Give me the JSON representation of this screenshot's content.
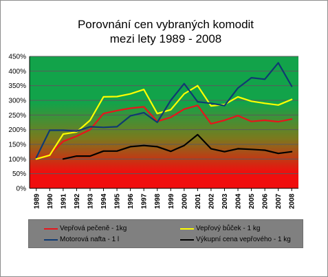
{
  "title": [
    "Porovnání cen vybraných komodit",
    "mezi lety 1989 - 2008"
  ],
  "colors": {
    "gradient_top": "#12a34a",
    "gradient_mid": "#7a7a1e",
    "gradient_bottom": "#f00e0e",
    "grid": "#5a5a5a"
  },
  "chart_data": {
    "type": "line",
    "title": "Porovnání cen vybraných komodit mezi lety 1989 - 2008",
    "categories": [
      "1989",
      "1990",
      "1991",
      "1992",
      "1993",
      "1994",
      "1995",
      "1996",
      "1997",
      "1998",
      "1999",
      "2000",
      "2001",
      "2002",
      "2003",
      "2004",
      "2005",
      "2006",
      "2007",
      "2008"
    ],
    "y_ticks": [
      "0%",
      "50%",
      "100%",
      "150%",
      "200%",
      "250%",
      "300%",
      "350%",
      "400%",
      "450%"
    ],
    "ylim": [
      0,
      450
    ],
    "y_unit": "%",
    "grid": true,
    "legend_position": "bottom",
    "series": [
      {
        "name": "Vepřová pečeně - 1kg",
        "color": "#e8141b",
        "values": [
          100,
          115,
          160,
          178,
          200,
          255,
          265,
          273,
          278,
          228,
          242,
          270,
          283,
          220,
          232,
          248,
          228,
          232,
          227,
          236
        ]
      },
      {
        "name": "Vepřový bůček - 1 kg",
        "color": "#ffff00",
        "values": [
          100,
          113,
          185,
          192,
          232,
          312,
          313,
          322,
          337,
          255,
          268,
          322,
          350,
          281,
          286,
          312,
          297,
          290,
          284,
          303
        ]
      },
      {
        "name": "Motorová nafta - 1 l",
        "color": "#0f3a72",
        "values": [
          105,
          198,
          198,
          195,
          210,
          208,
          210,
          247,
          258,
          225,
          300,
          357,
          295,
          290,
          282,
          342,
          377,
          372,
          428,
          348
        ]
      },
      {
        "name": "Výkupní cena vepřového - 1 kg",
        "color": "#000000",
        "values": [
          null,
          null,
          100,
          110,
          110,
          127,
          127,
          142,
          146,
          142,
          126,
          146,
          183,
          135,
          125,
          135,
          133,
          130,
          119,
          125
        ]
      }
    ]
  }
}
